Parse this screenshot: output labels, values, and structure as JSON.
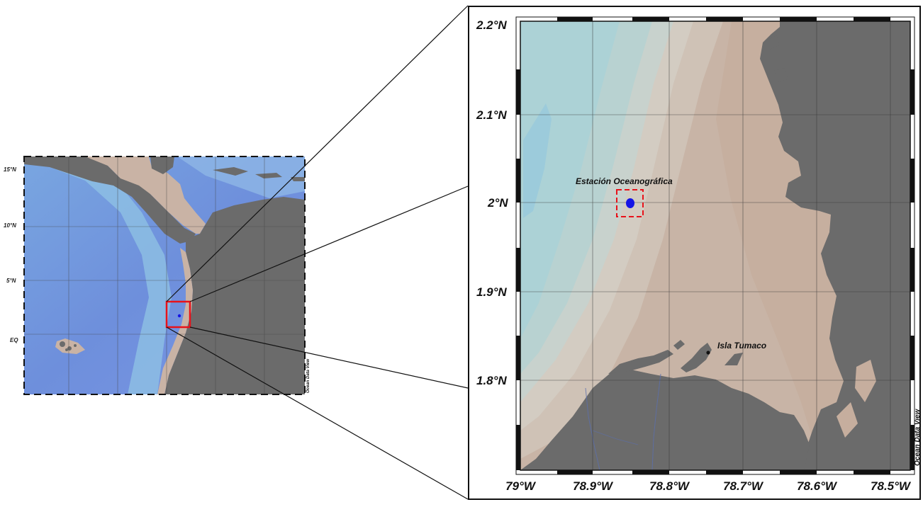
{
  "overview_map": {
    "lat_labels": [
      "15°N",
      "10°N",
      "5°N",
      "EQ"
    ],
    "watermark": "Ocean Data View"
  },
  "detail_map": {
    "lat_labels": [
      "2.2°N",
      "2.1°N",
      "2°N",
      "1.9°N",
      "1.8°N"
    ],
    "lon_labels": [
      "79°W",
      "78.9°W",
      "78.8°W",
      "78.7°W",
      "78.6°W",
      "78.5°W"
    ],
    "station_label": "Estación Oceanográfica",
    "island_label": "Isla Tumaco",
    "watermark": "Ocean Data View"
  },
  "colors": {
    "land": "#6b6b6b",
    "station_marker": "#1515e6",
    "highlight_box": "#e8121a",
    "ocean_deep": "#6f8fdc",
    "shelf": "#c8b2a4"
  },
  "icons": [
    "station-marker-icon",
    "island-marker-icon"
  ]
}
